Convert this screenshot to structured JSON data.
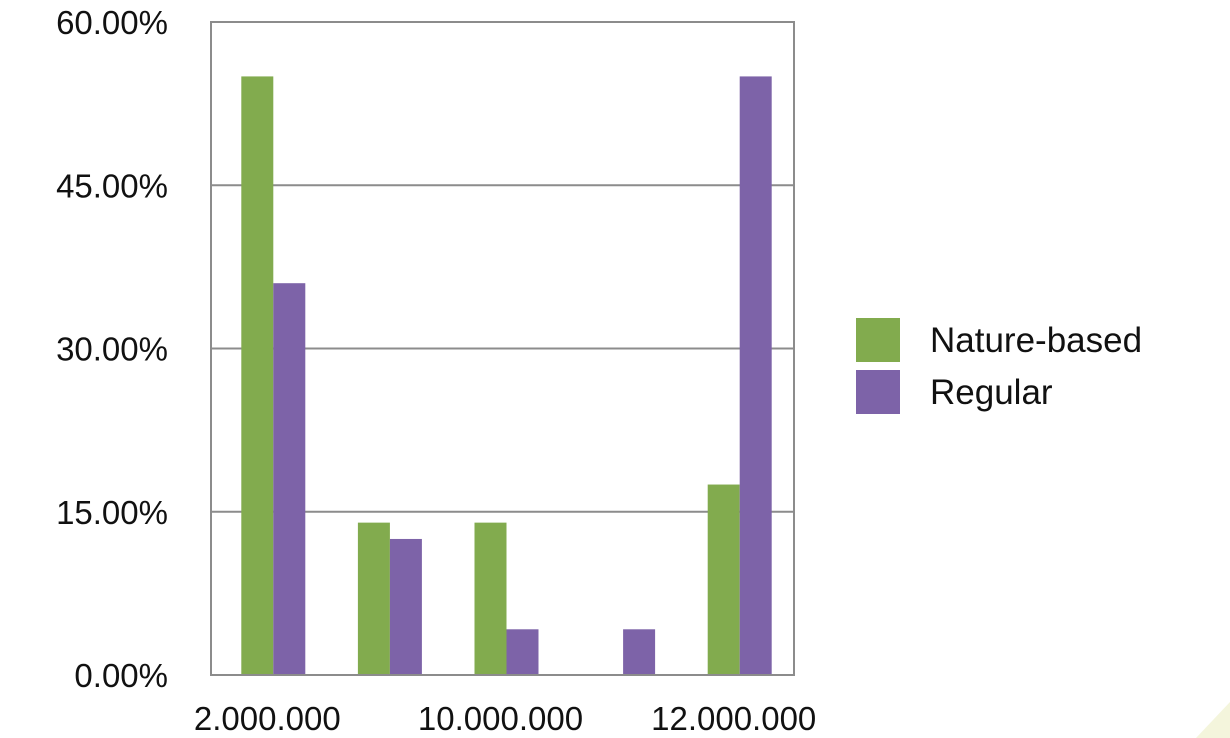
{
  "chart_data": {
    "type": "bar",
    "categories": [
      "2.000.000",
      "",
      "10.000.000",
      "",
      "12.000.000"
    ],
    "series": [
      {
        "name": "Nature-based",
        "color": "#82ab4e",
        "values": [
          55.0,
          14.0,
          14.0,
          0.0,
          17.5
        ]
      },
      {
        "name": "Regular",
        "color": "#7d63a8",
        "values": [
          36.0,
          12.5,
          4.2,
          4.2,
          55.0
        ]
      }
    ],
    "ylim": [
      0,
      60
    ],
    "yticks": [
      "0.00%",
      "15.00%",
      "30.00%",
      "45.00%",
      "60.00%"
    ],
    "ytick_values": [
      0,
      15,
      30,
      45,
      60
    ],
    "xtick_labels": [
      "2.000.000",
      "10.000.000",
      "12.000.000"
    ],
    "title": "",
    "xlabel": "",
    "ylabel": "",
    "grid": true,
    "legend_position": "right"
  }
}
